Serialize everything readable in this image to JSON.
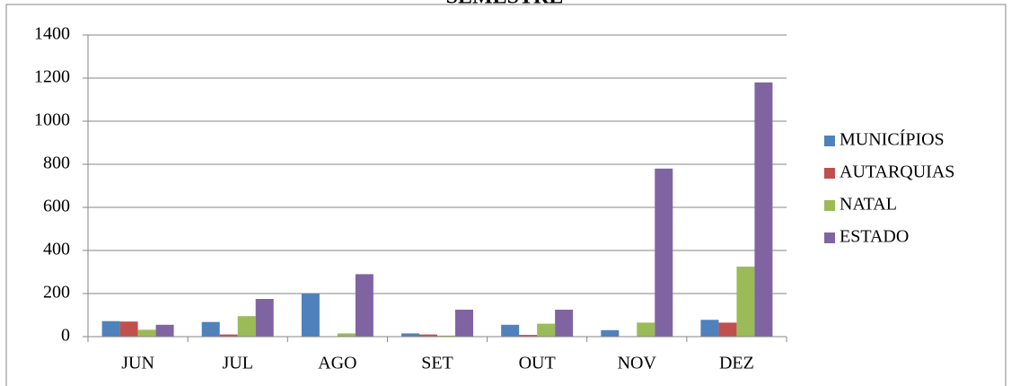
{
  "chart_data": {
    "type": "bar",
    "title": "SEMESTRE",
    "categories": [
      "JUN",
      "JUL",
      "AGO",
      "SET",
      "OUT",
      "NOV",
      "DEZ"
    ],
    "series": [
      {
        "name": "MUNICÍPIOS",
        "color": "#4f81bd",
        "values": [
          72,
          68,
          200,
          15,
          55,
          30,
          78
        ]
      },
      {
        "name": "AUTARQUIAS",
        "color": "#c0504d",
        "values": [
          70,
          10,
          0,
          10,
          8,
          0,
          65
        ]
      },
      {
        "name": "NATAL",
        "color": "#9bbb59",
        "values": [
          32,
          95,
          15,
          5,
          60,
          65,
          325
        ]
      },
      {
        "name": "ESTADO",
        "color": "#8064a2",
        "values": [
          55,
          175,
          290,
          125,
          125,
          780,
          1180
        ]
      }
    ],
    "ylim": [
      0,
      1400
    ],
    "yticks": [
      0,
      200,
      400,
      600,
      800,
      1000,
      1200,
      1400
    ],
    "grid": true,
    "legend": "right"
  }
}
